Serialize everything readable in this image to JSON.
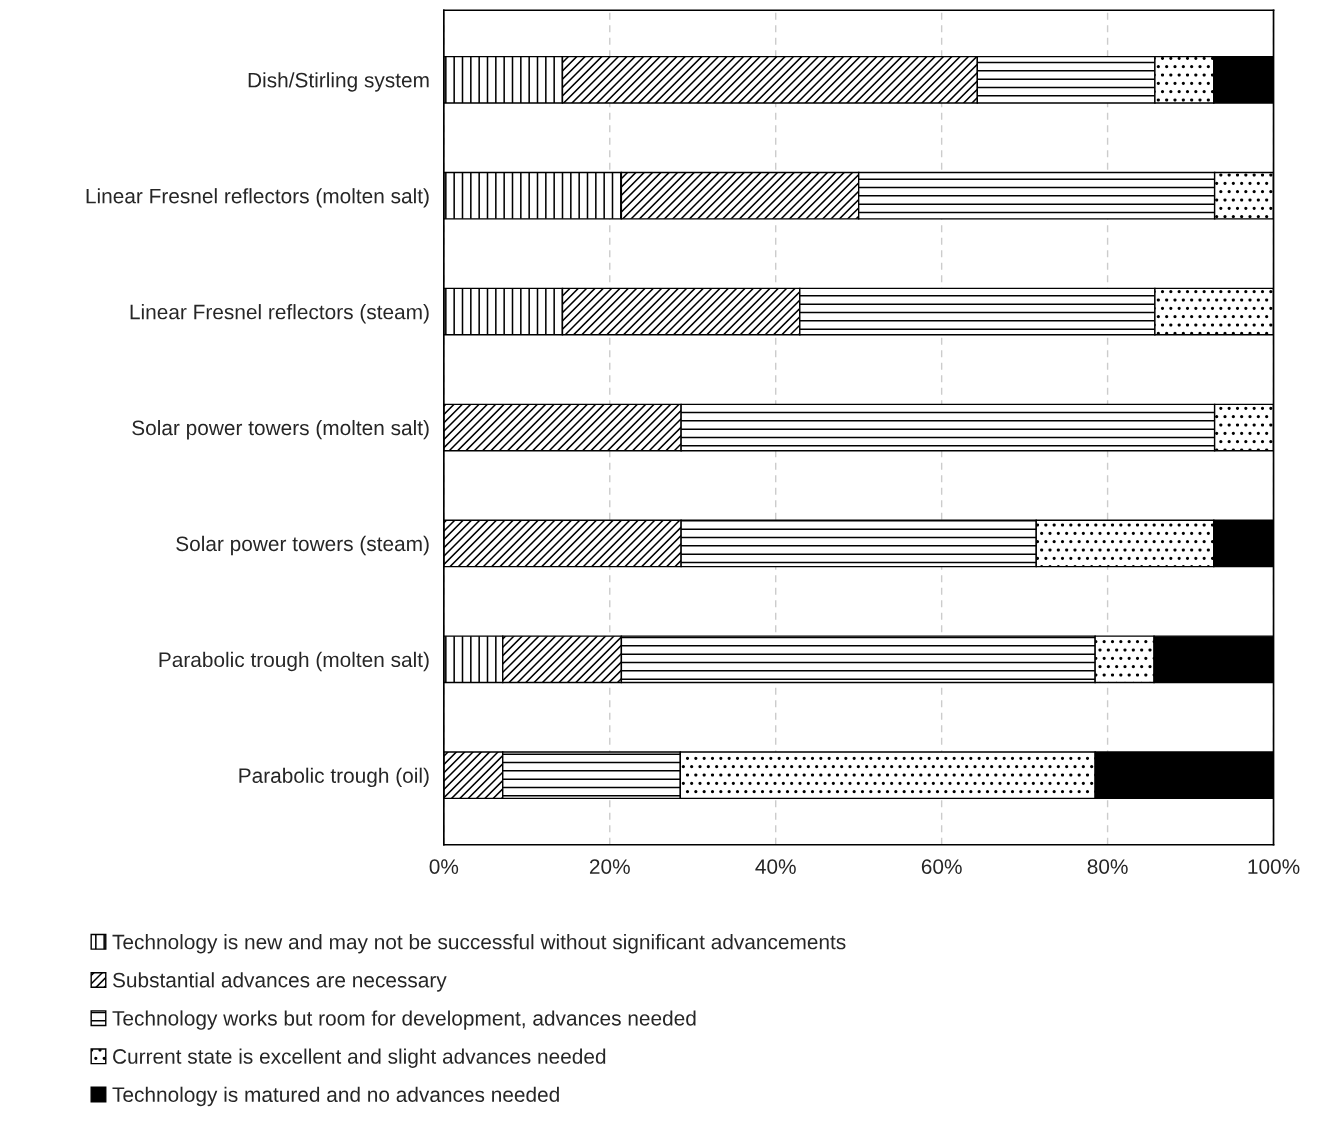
{
  "chart_data": {
    "type": "bar",
    "orientation": "horizontal",
    "stacked": true,
    "categories": [
      "Dish/Stirling system",
      "Linear Fresnel reflectors (molten salt)",
      "Linear Fresnel reflectors (steam)",
      "Solar power towers (molten salt)",
      "Solar power towers (steam)",
      "Parabolic trough (molten salt)",
      "Parabolic trough (oil)"
    ],
    "series": [
      {
        "name": "Technology is new and may not be successful without significant advancements",
        "color": "#ffffff",
        "values": [
          14.3,
          21.4,
          14.3,
          0,
          0,
          7.1,
          0
        ]
      },
      {
        "name": "Substantial advances are necessary",
        "color": "#ffffff",
        "values": [
          50.0,
          28.6,
          28.6,
          28.6,
          28.6,
          14.3,
          7.1
        ]
      },
      {
        "name": "Technology works but room for development, advances needed",
        "color": "#ffffff",
        "values": [
          21.4,
          42.9,
          42.8,
          64.3,
          42.8,
          57.1,
          21.4
        ]
      },
      {
        "name": "Current state is excellent and slight advances needed",
        "color": "#ffffff",
        "values": [
          7.1,
          7.1,
          14.3,
          7.1,
          21.4,
          7.1,
          50.0
        ]
      },
      {
        "name": "Technology is matured and no advances needed",
        "color": "#000000",
        "values": [
          7.2,
          0,
          0,
          0,
          7.2,
          14.4,
          21.5
        ]
      }
    ],
    "xlim": [
      0,
      100
    ],
    "xticks": [
      {
        "value": 0,
        "label": "0%"
      },
      {
        "value": 20,
        "label": "20%"
      },
      {
        "value": 40,
        "label": "40%"
      },
      {
        "value": 60,
        "label": "60%"
      },
      {
        "value": 80,
        "label": "80%"
      },
      {
        "value": 100,
        "label": "100%"
      }
    ],
    "grid": "x",
    "legend": "bottom"
  }
}
